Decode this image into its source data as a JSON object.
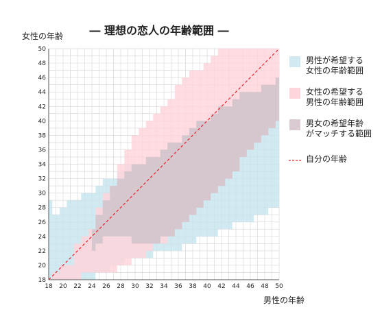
{
  "chart_data": {
    "type": "area",
    "title": "― 理想の恋人の年齢範囲 ―",
    "xlabel": "男性の年齢",
    "ylabel": "女性の年齢",
    "xlim": [
      18,
      50
    ],
    "ylim": [
      18,
      50
    ],
    "x_ticks": [
      "18",
      "20",
      "22",
      "24",
      "26",
      "28",
      "30",
      "32",
      "34",
      "36",
      "38",
      "40",
      "42",
      "44",
      "46",
      "48",
      "50"
    ],
    "y_ticks": [
      "18",
      "20",
      "22",
      "24",
      "26",
      "28",
      "30",
      "32",
      "34",
      "36",
      "38",
      "40",
      "42",
      "44",
      "46",
      "48",
      "50"
    ],
    "grid": true,
    "legend_position": "right",
    "colors": {
      "men_pref": "#c5e3ee",
      "women_pref": "#ffd3da",
      "overlap": "#d6c6cd",
      "self_line": "#e8202a"
    },
    "legend": [
      {
        "line1": "男性が希望する",
        "line2": "女性の年齢範囲",
        "kind": "box",
        "color": "#d3e9f2"
      },
      {
        "line1": "女性の希望する",
        "line2": "男性の年齢範囲",
        "kind": "box",
        "color": "#ffd6dc"
      },
      {
        "line1": "男女の希望年齢",
        "line2": "がマッチする範囲",
        "kind": "box",
        "color": "#d9cbd1"
      },
      {
        "line1": "自分の年齢",
        "line2": "",
        "kind": "dash",
        "color": "#e8202a"
      }
    ],
    "series": [
      {
        "name": "男性が希望する女性の年齢範囲",
        "x": [
          18,
          19,
          20,
          21,
          22,
          23,
          24,
          25,
          26,
          27,
          28,
          29,
          30,
          31,
          32,
          33,
          34,
          35,
          36,
          37,
          38,
          39,
          40,
          41,
          42,
          43,
          44,
          45,
          46,
          47,
          48,
          49,
          50
        ],
        "lower": [
          18,
          18,
          18,
          18,
          18,
          18,
          18,
          19,
          19,
          20,
          20,
          21,
          21,
          21,
          21,
          22,
          22,
          22,
          22,
          23,
          23,
          24,
          24,
          24,
          25,
          25,
          26,
          26,
          26,
          27,
          27,
          28,
          28
        ],
        "upper": [
          29,
          27,
          28,
          29,
          29,
          30,
          30,
          31,
          32,
          32,
          33,
          34,
          34,
          34,
          35,
          35,
          36,
          37,
          37,
          38,
          39,
          40,
          40,
          41,
          42,
          42,
          43,
          44,
          44,
          44,
          45,
          45,
          46
        ]
      },
      {
        "name": "女性の希望する男性の年齢範囲",
        "x": [
          18,
          19,
          20,
          21,
          22,
          23,
          24,
          25,
          26,
          27,
          28,
          29,
          30,
          31,
          32,
          33,
          34,
          35,
          36,
          37,
          38,
          39,
          40,
          41,
          42,
          43,
          44,
          45,
          46,
          47,
          48,
          49,
          50
        ],
        "lower": [
          18,
          18,
          18,
          18,
          18,
          19,
          19,
          19,
          19,
          19,
          20,
          20,
          21,
          21,
          22,
          23,
          23,
          24,
          25,
          26,
          27,
          28,
          29,
          30,
          31,
          32,
          33,
          35,
          36,
          37,
          38,
          39,
          40
        ],
        "upper": [
          18,
          19,
          20,
          20,
          23,
          24,
          25,
          28,
          30,
          31,
          34,
          36,
          38,
          39,
          40,
          41,
          42,
          43,
          45,
          46,
          47,
          47,
          48,
          49,
          50,
          50,
          50,
          50,
          50,
          50,
          50,
          50,
          50
        ]
      },
      {
        "name": "男女の希望年齢がマッチする範囲",
        "x": [
          24,
          25,
          26,
          27,
          28,
          29,
          30,
          31,
          32,
          33,
          34,
          35,
          36,
          37,
          38,
          39,
          40,
          41,
          42,
          43,
          44,
          45,
          46,
          47,
          48,
          49,
          50
        ],
        "lower": [
          22,
          23,
          24,
          24,
          24,
          24,
          23,
          23,
          23,
          23,
          24,
          24,
          25,
          26,
          27,
          28,
          29,
          30,
          31,
          32,
          33,
          35,
          36,
          37,
          38,
          39,
          40
        ],
        "upper": [
          25,
          27,
          29,
          31,
          32,
          33,
          34,
          34,
          35,
          35,
          36,
          37,
          37,
          38,
          39,
          40,
          40,
          41,
          42,
          42,
          43,
          44,
          44,
          44,
          45,
          45,
          46
        ]
      },
      {
        "name": "自分の年齢",
        "x": [
          18,
          50
        ],
        "y": [
          18,
          50
        ]
      }
    ]
  }
}
